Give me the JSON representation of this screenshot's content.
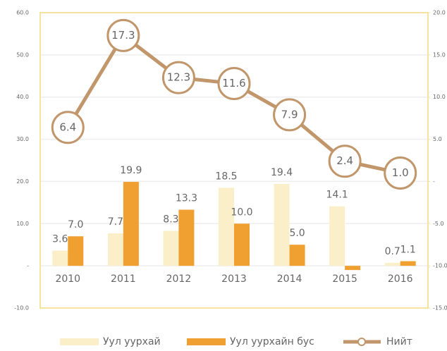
{
  "chart_data": {
    "type": "bar-line",
    "categories": [
      "2010",
      "2011",
      "2012",
      "2013",
      "2014",
      "2015",
      "2016"
    ],
    "series": [
      {
        "name": "Уул уурхай",
        "type": "bar",
        "color": "#faefc8",
        "values": [
          3.6,
          7.7,
          8.3,
          18.5,
          19.4,
          14.1,
          0.7
        ],
        "value_labels": [
          "3.6",
          "7.7",
          "8.3",
          "18.5",
          "19.4",
          "14.1",
          "0.7"
        ]
      },
      {
        "name": "Уул уурхайн бус",
        "type": "bar",
        "color": "#f0a030",
        "values": [
          7.0,
          19.9,
          13.3,
          10.0,
          5.0,
          -1.0,
          1.1
        ],
        "value_labels": [
          "7.0",
          "19.9",
          "13.3",
          "10.0",
          "5.0",
          null,
          "1.1"
        ]
      },
      {
        "name": "Нийт",
        "type": "line",
        "axis": "y2",
        "color": "#c0966a",
        "values": [
          6.4,
          17.3,
          12.3,
          11.6,
          7.9,
          2.4,
          1.0
        ],
        "value_labels": [
          "6.4",
          "17.3",
          "12.3",
          "11.6",
          "7.9",
          "2.4",
          "1.0"
        ]
      }
    ],
    "ylim": [
      -10,
      60
    ],
    "yticks": [
      {
        "value": -10,
        "label": "-10.0"
      },
      {
        "value": 0,
        "label": "-"
      },
      {
        "value": 10,
        "label": "10.0"
      },
      {
        "value": 20,
        "label": "20.0"
      },
      {
        "value": 30,
        "label": "30.0"
      },
      {
        "value": 40,
        "label": "40.0"
      },
      {
        "value": 50,
        "label": "50.0"
      },
      {
        "value": 60,
        "label": "60.0"
      }
    ],
    "y2lim": [
      -15,
      20
    ],
    "y2ticks": [
      {
        "value": -15,
        "label": "-15.0"
      },
      {
        "value": -10,
        "label": "-10.0"
      },
      {
        "value": -5,
        "label": "-5.0"
      },
      {
        "value": 0,
        "label": "-"
      },
      {
        "value": 5,
        "label": "5.0"
      },
      {
        "value": 10,
        "label": "10.0"
      },
      {
        "value": 15,
        "label": "15.0"
      },
      {
        "value": 20,
        "label": "20.0"
      }
    ],
    "grid": true,
    "legend": "bottom"
  }
}
